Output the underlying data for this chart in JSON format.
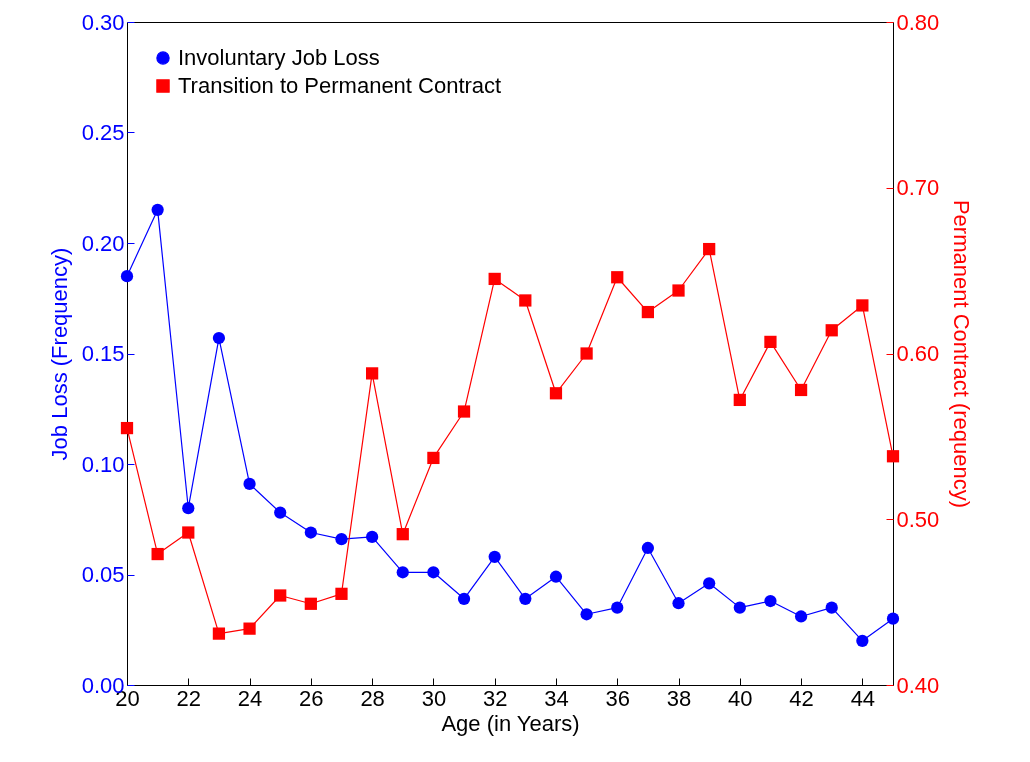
{
  "chart_data": {
    "type": "line",
    "xlabel": "Age (in Years)",
    "ylabel": "Job Loss (Frequency)",
    "y2label": "Permanent Contract (requency)",
    "x": [
      20,
      21,
      22,
      23,
      24,
      25,
      26,
      27,
      28,
      29,
      30,
      31,
      32,
      33,
      34,
      35,
      36,
      37,
      38,
      39,
      40,
      41,
      42,
      43,
      44,
      45
    ],
    "series": [
      {
        "name": "Involuntary Job Loss",
        "color": "#0000ff",
        "marker": "circle",
        "axis": "y",
        "values": [
          0.185,
          0.215,
          0.08,
          0.157,
          0.091,
          0.078,
          0.069,
          0.066,
          0.067,
          0.051,
          0.051,
          0.039,
          0.058,
          0.039,
          0.049,
          0.032,
          0.035,
          0.062,
          0.037,
          0.046,
          0.035,
          0.038,
          0.031,
          0.035,
          0.02,
          0.03
        ]
      },
      {
        "name": "Transition to Permanent Contract",
        "color": "#ff0000",
        "marker": "square",
        "axis": "y2",
        "values": [
          0.555,
          0.479,
          0.492,
          0.431,
          0.434,
          0.454,
          0.449,
          0.455,
          0.588,
          0.491,
          0.537,
          0.565,
          0.645,
          0.632,
          0.576,
          0.6,
          0.646,
          0.625,
          0.638,
          0.663,
          0.572,
          0.607,
          0.578,
          0.614,
          0.629,
          0.538
        ]
      }
    ],
    "xlim": [
      20,
      45
    ],
    "xticks": [
      20,
      22,
      24,
      26,
      28,
      30,
      32,
      34,
      36,
      38,
      40,
      42,
      44
    ],
    "ylim": [
      0,
      0.3
    ],
    "yticks": [
      {
        "value": 0,
        "label": "0.00"
      },
      {
        "value": 0.05,
        "label": "0.05"
      },
      {
        "value": 0.1,
        "label": "0.10"
      },
      {
        "value": 0.15,
        "label": "0.15"
      },
      {
        "value": 0.2,
        "label": "0.20"
      },
      {
        "value": 0.25,
        "label": "0.25"
      },
      {
        "value": 0.3,
        "label": "0.30"
      }
    ],
    "y2lim": [
      0.4,
      0.8
    ],
    "y2ticks": [
      {
        "value": 0.4,
        "label": "0.40"
      },
      {
        "value": 0.5,
        "label": "0.50"
      },
      {
        "value": 0.6,
        "label": "0.60"
      },
      {
        "value": 0.7,
        "label": "0.70"
      },
      {
        "value": 0.8,
        "label": "0.80"
      }
    ],
    "grid": false,
    "legend": "top left"
  }
}
